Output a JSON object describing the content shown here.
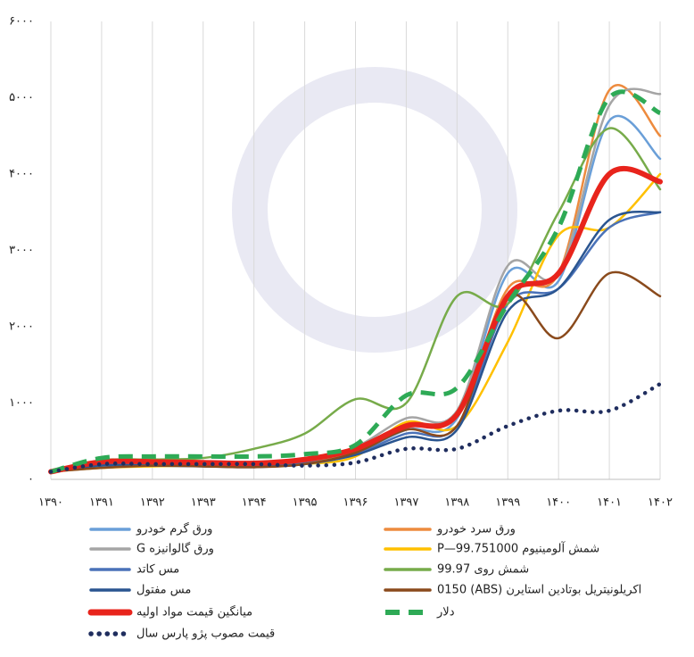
{
  "chart_data": {
    "type": "line",
    "x": [
      1390,
      1391,
      1392,
      1393,
      1394,
      1395,
      1396,
      1397,
      1398,
      1399,
      1400,
      1401,
      1402
    ],
    "xlim": [
      1390,
      1402
    ],
    "xticks": [
      {
        "value": 1390,
        "label": "۱۳۹۰"
      },
      {
        "value": 1391,
        "label": "۱۳۹۱"
      },
      {
        "value": 1392,
        "label": "۱۳۹۲"
      },
      {
        "value": 1393,
        "label": "۱۳۹۳"
      },
      {
        "value": 1394,
        "label": "۱۳۹۴"
      },
      {
        "value": 1395,
        "label": "۱۳۹۵"
      },
      {
        "value": 1396,
        "label": "۱۳۹۶"
      },
      {
        "value": 1397,
        "label": "۱۳۹۷"
      },
      {
        "value": 1398,
        "label": "۱۳۹۸"
      },
      {
        "value": 1399,
        "label": "۱۳۹۹"
      },
      {
        "value": 1400,
        "label": "۱۴۰۰"
      },
      {
        "value": 1401,
        "label": "۱۴۰۱"
      },
      {
        "value": 1402,
        "label": "۱۴۰۲"
      }
    ],
    "ylim": [
      0,
      6000
    ],
    "yticks": [
      {
        "value": 0,
        "label": "۰"
      },
      {
        "value": 1000,
        "label": "۱۰۰۰"
      },
      {
        "value": 2000,
        "label": "۲۰۰۰"
      },
      {
        "value": 3000,
        "label": "۳۰۰۰"
      },
      {
        "value": 4000,
        "label": "۴۰۰۰"
      },
      {
        "value": 5000,
        "label": "۵۰۰۰"
      },
      {
        "value": 6000,
        "label": "۶۰۰۰"
      }
    ],
    "grid": "x",
    "series": [
      {
        "name": "ورق گرم خودرو",
        "color": "#6a9fd8",
        "values": [
          100,
          180,
          200,
          190,
          180,
          220,
          350,
          650,
          800,
          2700,
          2600,
          4700,
          4200
        ]
      },
      {
        "name": "ورق سرد خودرو",
        "color": "#ed8b3e",
        "values": [
          100,
          200,
          220,
          210,
          190,
          230,
          380,
          700,
          850,
          2500,
          2700,
          5100,
          4500
        ]
      },
      {
        "name": "ورق گالوانیزه G",
        "color": "#a5a5a5",
        "values": [
          100,
          210,
          230,
          220,
          200,
          240,
          420,
          800,
          900,
          2800,
          2700,
          4900,
          5050
        ]
      },
      {
        "name": "شمش آلومینیوم P—99.751000",
        "color": "#ffc000",
        "values": [
          100,
          150,
          170,
          180,
          170,
          200,
          300,
          750,
          700,
          1800,
          3200,
          3300,
          4000
        ]
      },
      {
        "name": "مس کاتد",
        "color": "#4a72b8",
        "values": [
          100,
          190,
          190,
          180,
          170,
          210,
          330,
          600,
          700,
          2300,
          2500,
          3300,
          3500
        ]
      },
      {
        "name": "شمش روی 99.97",
        "color": "#77ab4a",
        "values": [
          100,
          250,
          260,
          280,
          400,
          600,
          1050,
          1000,
          2400,
          2300,
          3500,
          4600,
          3800
        ]
      },
      {
        "name": "مس مفتول",
        "color": "#2a5590",
        "values": [
          100,
          180,
          180,
          170,
          160,
          200,
          320,
          550,
          650,
          2200,
          2500,
          3400,
          3500
        ]
      },
      {
        "name": "اکریلونیتریل بوتادین استایرن (ABS) 0150",
        "color": "#8a4a1c",
        "values": [
          100,
          150,
          180,
          170,
          160,
          200,
          350,
          650,
          700,
          2400,
          1850,
          2700,
          2400
        ]
      },
      {
        "name": "میانگین قیمت مواد اولیه",
        "color": "#e8241c",
        "style": "thick",
        "values": [
          100,
          230,
          230,
          220,
          210,
          260,
          400,
          700,
          850,
          2400,
          2700,
          4000,
          3900
        ]
      },
      {
        "name": "دلار",
        "color": "#2eaa56",
        "style": "dashed",
        "values": [
          100,
          280,
          300,
          300,
          300,
          330,
          450,
          1100,
          1200,
          2300,
          3300,
          5000,
          4800
        ]
      },
      {
        "name": "قیمت مصوب پژو پارس سال",
        "color": "#1f2d5e",
        "style": "dotted",
        "values": [
          100,
          200,
          200,
          200,
          200,
          180,
          220,
          400,
          400,
          700,
          900,
          900,
          1250
        ]
      }
    ]
  }
}
